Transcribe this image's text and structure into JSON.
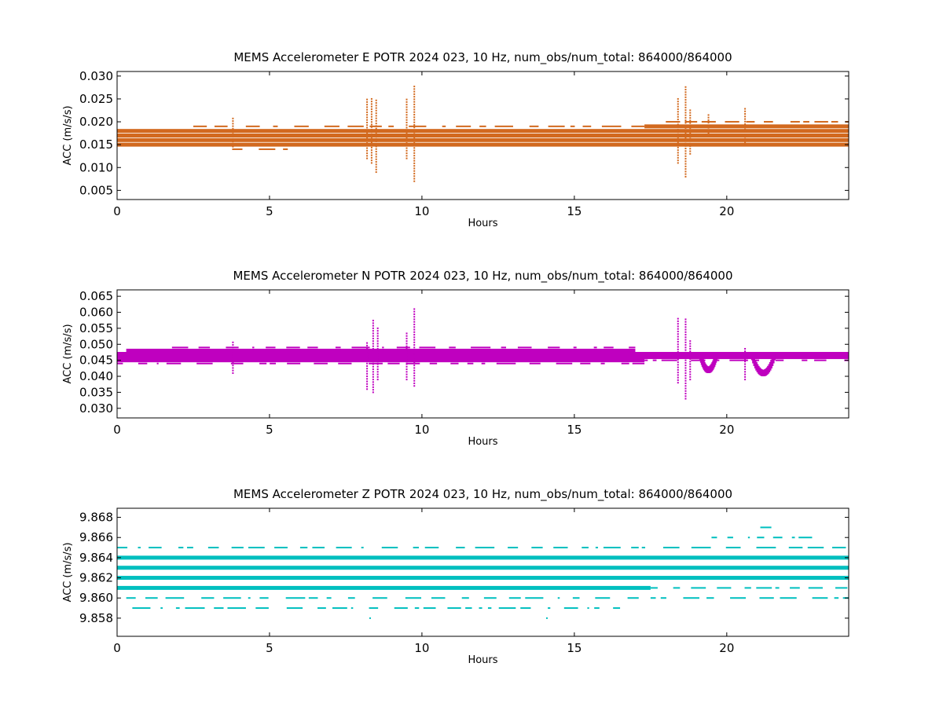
{
  "chart_data": [
    {
      "type": "scatter",
      "title": "MEMS Accelerometer E POTR 2024 023, 10 Hz, num_obs/num_total: 864000/864000",
      "xlabel": "Hours",
      "ylabel": "ACC (m/s/s)",
      "xlim": [
        0,
        24
      ],
      "ylim": [
        0.003,
        0.031
      ],
      "xticks": [
        0,
        5,
        10,
        15,
        20
      ],
      "xtick_labels": [
        "0",
        "5",
        "10",
        "15",
        "20"
      ],
      "yticks": [
        0.005,
        0.01,
        0.015,
        0.02,
        0.025,
        0.03
      ],
      "ytick_labels": [
        "0.005",
        "0.010",
        "0.015",
        "0.020",
        "0.025",
        "0.030"
      ],
      "color": "#d2691e",
      "dense_bands": [
        {
          "y": 0.015,
          "x": [
            0,
            24
          ]
        },
        {
          "y": 0.016,
          "x": [
            0,
            24
          ]
        },
        {
          "y": 0.017,
          "x": [
            0,
            24
          ]
        },
        {
          "y": 0.018,
          "x": [
            0,
            24
          ]
        },
        {
          "y": 0.019,
          "x": [
            17.3,
            24
          ]
        }
      ],
      "sparse_bands": [
        {
          "y": 0.019,
          "x": [
            2.5,
            17.3
          ]
        },
        {
          "y": 0.014,
          "x": [
            3.8,
            5.6
          ]
        },
        {
          "y": 0.02,
          "x": [
            18.0,
            24
          ]
        }
      ],
      "spikes": [
        {
          "x": 3.8,
          "y": [
            0.014,
            0.021
          ]
        },
        {
          "x": 8.2,
          "y": [
            0.012,
            0.025
          ]
        },
        {
          "x": 8.35,
          "y": [
            0.011,
            0.025
          ]
        },
        {
          "x": 8.5,
          "y": [
            0.009,
            0.025
          ]
        },
        {
          "x": 9.5,
          "y": [
            0.012,
            0.025
          ]
        },
        {
          "x": 9.75,
          "y": [
            0.007,
            0.028
          ]
        },
        {
          "x": 18.4,
          "y": [
            0.011,
            0.025
          ]
        },
        {
          "x": 18.65,
          "y": [
            0.008,
            0.028
          ]
        },
        {
          "x": 18.8,
          "y": [
            0.013,
            0.023
          ]
        },
        {
          "x": 19.4,
          "y": [
            0.017,
            0.022
          ]
        },
        {
          "x": 20.6,
          "y": [
            0.015,
            0.023
          ]
        }
      ]
    },
    {
      "type": "scatter",
      "title": "MEMS Accelerometer N POTR 2024 023, 10 Hz, num_obs/num_total: 864000/864000",
      "xlabel": "Hours",
      "ylabel": "ACC (m/s/s)",
      "xlim": [
        0,
        24
      ],
      "ylim": [
        0.027,
        0.067
      ],
      "xticks": [
        0,
        5,
        10,
        15,
        20
      ],
      "xtick_labels": [
        "0",
        "5",
        "10",
        "15",
        "20"
      ],
      "yticks": [
        0.03,
        0.035,
        0.04,
        0.045,
        0.05,
        0.055,
        0.06,
        0.065
      ],
      "ytick_labels": [
        "0.030",
        "0.035",
        "0.040",
        "0.045",
        "0.050",
        "0.055",
        "0.060",
        "0.065"
      ],
      "color": "#bf00bf",
      "dense_bands": [
        {
          "y": 0.045,
          "x": [
            0,
            17.3
          ]
        },
        {
          "y": 0.046,
          "x": [
            0,
            24
          ]
        },
        {
          "y": 0.047,
          "x": [
            0,
            24
          ]
        },
        {
          "y": 0.048,
          "x": [
            0.3,
            17.0
          ]
        }
      ],
      "sparse_bands": [
        {
          "y": 0.049,
          "x": [
            1.8,
            17.0
          ]
        },
        {
          "y": 0.044,
          "x": [
            0,
            17.3
          ]
        },
        {
          "y": 0.045,
          "x": [
            17.3,
            24
          ]
        }
      ],
      "dips": [
        {
          "x_center": 19.4,
          "half_width": 0.25,
          "y_min": 0.041
        },
        {
          "x_center": 21.2,
          "half_width": 0.35,
          "y_min": 0.04
        }
      ],
      "spikes": [
        {
          "x": 3.8,
          "y": [
            0.041,
            0.051
          ]
        },
        {
          "x": 8.2,
          "y": [
            0.036,
            0.051
          ]
        },
        {
          "x": 8.4,
          "y": [
            0.035,
            0.058
          ]
        },
        {
          "x": 8.55,
          "y": [
            0.039,
            0.055
          ]
        },
        {
          "x": 9.5,
          "y": [
            0.039,
            0.054
          ]
        },
        {
          "x": 9.75,
          "y": [
            0.037,
            0.061
          ]
        },
        {
          "x": 18.4,
          "y": [
            0.038,
            0.058
          ]
        },
        {
          "x": 18.65,
          "y": [
            0.033,
            0.058
          ]
        },
        {
          "x": 18.8,
          "y": [
            0.039,
            0.051
          ]
        },
        {
          "x": 20.6,
          "y": [
            0.039,
            0.049
          ]
        }
      ]
    },
    {
      "type": "scatter",
      "title": "MEMS Accelerometer Z POTR 2024 023, 10 Hz, num_obs/num_total: 864000/864000",
      "xlabel": "Hours",
      "ylabel": "ACC (m/s/s)",
      "xlim": [
        0,
        24
      ],
      "ylim": [
        9.8562,
        9.8689
      ],
      "xticks": [
        0,
        5,
        10,
        15,
        20
      ],
      "xtick_labels": [
        "0",
        "5",
        "10",
        "15",
        "20"
      ],
      "yticks": [
        9.858,
        9.86,
        9.862,
        9.864,
        9.866,
        9.868
      ],
      "ytick_labels": [
        "9.858",
        "9.860",
        "9.862",
        "9.864",
        "9.866",
        "9.868"
      ],
      "color": "#00bfbf",
      "dense_bands": [
        {
          "y": 9.861,
          "x": [
            0,
            17.5
          ]
        },
        {
          "y": 9.862,
          "x": [
            0,
            24
          ]
        },
        {
          "y": 9.863,
          "x": [
            0,
            24
          ]
        },
        {
          "y": 9.864,
          "x": [
            0,
            24
          ]
        }
      ],
      "sparse_bands": [
        {
          "y": 9.861,
          "x": [
            17.5,
            24
          ]
        },
        {
          "y": 9.86,
          "x": [
            0.3,
            17.5
          ]
        },
        {
          "y": 9.86,
          "x": [
            17.5,
            24
          ]
        },
        {
          "y": 9.865,
          "x": [
            0,
            24
          ]
        },
        {
          "y": 9.859,
          "x": [
            0.5,
            16.5
          ]
        },
        {
          "y": 9.866,
          "x": [
            19.5,
            22.8
          ]
        },
        {
          "y": 9.867,
          "x": [
            21.1,
            21.6
          ]
        }
      ],
      "points": [
        {
          "x": 8.3,
          "y": 9.858
        },
        {
          "x": 14.1,
          "y": 9.858
        }
      ]
    }
  ]
}
